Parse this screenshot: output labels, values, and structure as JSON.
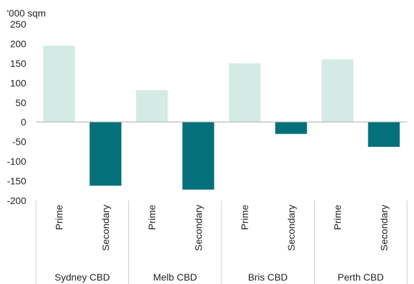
{
  "chart_data": {
    "type": "bar",
    "title": "",
    "ylabel": "'000 sqm",
    "ylim": [
      -200,
      250
    ],
    "yticks": [
      250,
      200,
      150,
      100,
      50,
      0,
      -50,
      -100,
      -150,
      -200
    ],
    "groups": [
      "Sydney CBD",
      "Melb CBD",
      "Bris CBD",
      "Perth CBD"
    ],
    "subcategories": [
      "Prime",
      "Secondary"
    ],
    "colors": {
      "Prime": "#d4ebe5",
      "Secondary": "#03707a"
    },
    "bars": [
      {
        "group": "Sydney CBD",
        "sub": "Prime",
        "value": 195
      },
      {
        "group": "Sydney CBD",
        "sub": "Secondary",
        "value": -162
      },
      {
        "group": "Melb CBD",
        "sub": "Prime",
        "value": 82
      },
      {
        "group": "Melb CBD",
        "sub": "Secondary",
        "value": -172
      },
      {
        "group": "Bris CBD",
        "sub": "Prime",
        "value": 150
      },
      {
        "group": "Bris CBD",
        "sub": "Secondary",
        "value": -30
      },
      {
        "group": "Perth CBD",
        "sub": "Prime",
        "value": 160
      },
      {
        "group": "Perth CBD",
        "sub": "Secondary",
        "value": -63
      }
    ],
    "grid": false,
    "legend": "none"
  }
}
